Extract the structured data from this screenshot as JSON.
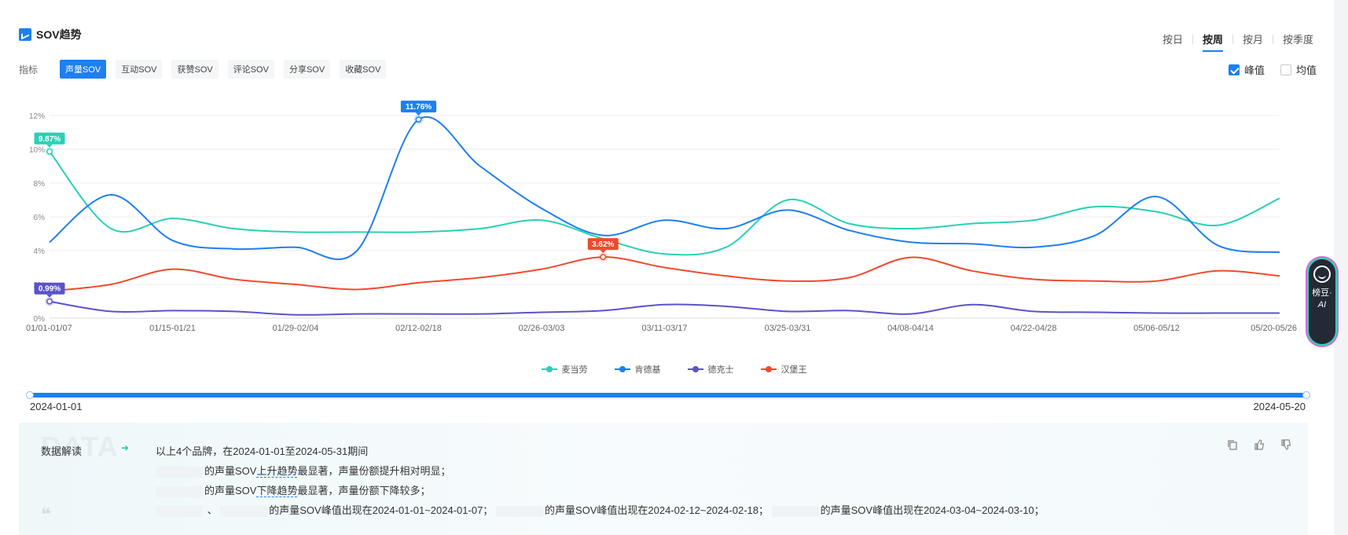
{
  "header": {
    "title": "SOV趋势"
  },
  "period_tabs": [
    {
      "label": "按日",
      "active": false
    },
    {
      "label": "按周",
      "active": true
    },
    {
      "label": "按月",
      "active": false
    },
    {
      "label": "按季度",
      "active": false
    }
  ],
  "metrics": {
    "label": "指标",
    "items": [
      {
        "label": "声量SOV",
        "active": true
      },
      {
        "label": "互动SOV",
        "active": false
      },
      {
        "label": "获赞SOV",
        "active": false
      },
      {
        "label": "评论SOV",
        "active": false
      },
      {
        "label": "分享SOV",
        "active": false
      },
      {
        "label": "收藏SOV",
        "active": false
      }
    ]
  },
  "toggles": {
    "peak_label": "峰值",
    "peak_checked": true,
    "avg_label": "均值",
    "avg_checked": false
  },
  "chart_data": {
    "type": "line",
    "x": [
      "01/01-01/07",
      "01/08-01/14",
      "01/15-01/21",
      "01/22-01/28",
      "01/29-02/04",
      "02/05-02/11",
      "02/12-02/18",
      "02/19-02/25",
      "02/26-03/03",
      "03/04-03/10",
      "03/11-03/17",
      "03/18-03/24",
      "03/25-03/31",
      "04/01-04/07",
      "04/08-04/14",
      "04/15-04/21",
      "04/22-04/28",
      "04/29-05/05",
      "05/06-05/12",
      "05/13-05/19",
      "05/20-05/26"
    ],
    "xticks_shown": [
      "01/01-01/07",
      "01/15-01/21",
      "01/29-02/04",
      "02/12-02/18",
      "02/26-03/03",
      "03/11-03/17",
      "03/25-03/31",
      "04/08-04/14",
      "04/22-04/28",
      "05/06-05/12",
      "05/20-05/26"
    ],
    "yticks": [
      "0%",
      "2%",
      "4%",
      "6%",
      "8%",
      "10%",
      "12%"
    ],
    "ylim": [
      0,
      12
    ],
    "grid": true,
    "legend": "bottom",
    "series": [
      {
        "name": "麦当劳",
        "color": "#2ad0b5",
        "values": [
          9.87,
          5.3,
          5.9,
          5.3,
          5.1,
          5.1,
          5.1,
          5.3,
          5.8,
          4.7,
          3.8,
          4.2,
          7.0,
          5.6,
          5.3,
          5.6,
          5.8,
          6.6,
          6.3,
          5.5,
          7.1
        ],
        "peak": {
          "index": 0,
          "label": "9.87%"
        }
      },
      {
        "name": "肯德基",
        "color": "#1e7ff0",
        "values": [
          4.5,
          7.3,
          4.6,
          4.1,
          4.2,
          4.0,
          11.76,
          9.0,
          6.5,
          4.9,
          5.8,
          5.3,
          6.4,
          5.2,
          4.5,
          4.4,
          4.2,
          4.9,
          7.2,
          4.3,
          3.9
        ],
        "peak": {
          "index": 6,
          "label": "11.76%"
        }
      },
      {
        "name": "德克士",
        "color": "#5b52c9",
        "values": [
          0.99,
          0.4,
          0.45,
          0.4,
          0.2,
          0.25,
          0.25,
          0.25,
          0.35,
          0.45,
          0.8,
          0.7,
          0.4,
          0.45,
          0.25,
          0.8,
          0.4,
          0.35,
          0.3,
          0.3,
          0.3
        ],
        "peak": {
          "index": 0,
          "label": "0.99%"
        }
      },
      {
        "name": "汉堡王",
        "color": "#f04a2e",
        "values": [
          1.6,
          2.0,
          2.9,
          2.3,
          2.0,
          1.7,
          2.1,
          2.4,
          2.9,
          3.62,
          3.0,
          2.5,
          2.2,
          2.4,
          3.6,
          2.8,
          2.3,
          2.2,
          2.2,
          2.8,
          2.5
        ],
        "peak": {
          "index": 9,
          "label": "3.62%"
        }
      }
    ]
  },
  "slider": {
    "start": "2024-01-01",
    "end": "2024-05-20"
  },
  "interpretation": {
    "bg_text": "DATA",
    "label": "数据解读",
    "line1": "以上4个品牌，在2024-01-01至2024-05-31期间",
    "line2_a": "的声量SOV",
    "line2_b": "上升趋势",
    "line2_c": "最显著，声量份额提升相对明显；",
    "line3_a": "的声量SOV",
    "line3_b": "下降趋势",
    "line3_c": "最显著，声量份额下降较多；",
    "line4_sep": "、",
    "line4_a": "的声量SOV峰值出现在2024-01-01~2024-01-07；",
    "line4_b": "的声量SOV峰值出现在2024-02-12~2024-02-18；",
    "line4_c": "的声量SOV峰值出现在2024-03-04~2024-03-10；"
  },
  "ai_assistant": {
    "label": "榜豆·",
    "tag": "AI"
  }
}
